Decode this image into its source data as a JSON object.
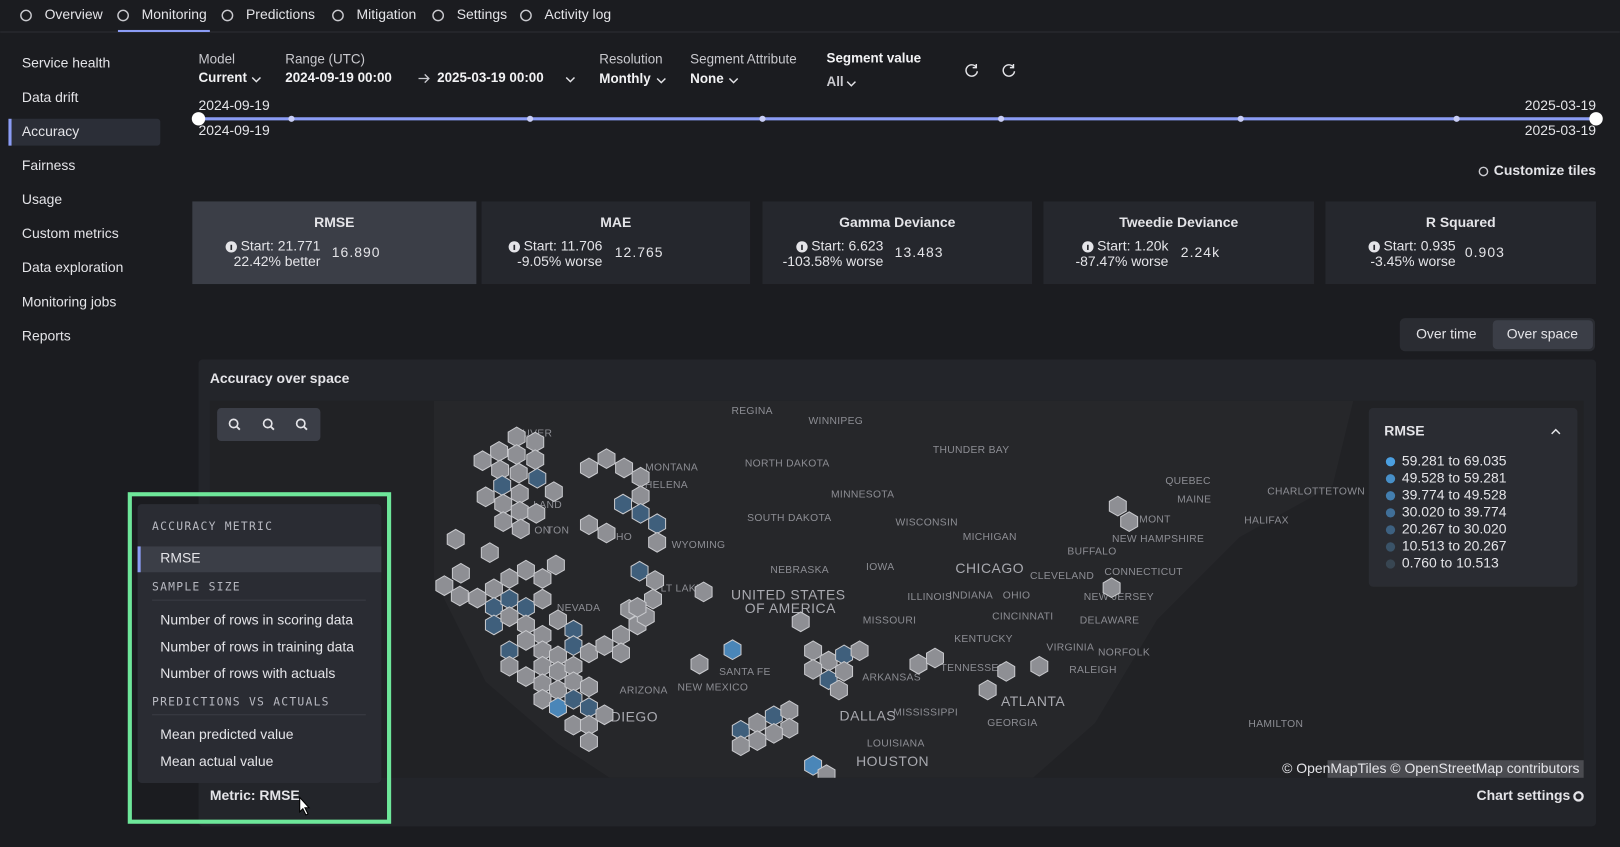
{
  "nav": [
    "Overview",
    "Monitoring",
    "Predictions",
    "Mitigation",
    "Settings",
    "Activity log"
  ],
  "sidebar": [
    "Service health",
    "Data drift",
    "Accuracy",
    "Fairness",
    "Usage",
    "Custom metrics",
    "Data exploration",
    "Monitoring jobs",
    "Reports"
  ],
  "filters": {
    "model": {
      "label": "Model",
      "value": "Current"
    },
    "range": {
      "label": "Range (UTC)",
      "start": "2024-09-19  00:00",
      "end": "2025-03-19  00:00"
    },
    "resolution": {
      "label": "Resolution",
      "value": "Monthly"
    },
    "segment_attribute": {
      "label": "Segment Attribute",
      "value": "None"
    },
    "segment_value": {
      "label": "Segment value",
      "value": "All"
    }
  },
  "timeline": {
    "start_top": "2024-09-19",
    "start_bottom": "2024-09-19",
    "end_top": "2025-03-19",
    "end_bottom": "2025-03-19"
  },
  "customize": "Customize tiles",
  "tiles": [
    {
      "name": "RMSE",
      "start": "Start: 21.771",
      "change": "22.42% better",
      "change_color": "#4cc47a",
      "value": "16.890"
    },
    {
      "name": "MAE",
      "start": "Start: 11.706",
      "change": "-9.05% worse",
      "change_color": "#e0605a",
      "value": "12.765"
    },
    {
      "name": "Gamma Deviance",
      "start": "Start: 6.623",
      "change": "-103.58% worse",
      "change_color": "#e0605a",
      "value": "13.483"
    },
    {
      "name": "Tweedie Deviance",
      "start": "Start: 1.20k",
      "change": "-87.47% worse",
      "change_color": "#e0605a",
      "value": "2.24k"
    },
    {
      "name": "R Squared",
      "start": "Start: 0.935",
      "change": "-3.45% worse",
      "change_color": "#e0605a",
      "value": "0.903"
    }
  ],
  "toggle": [
    "Over time",
    "Over space"
  ],
  "panel": {
    "title": "Accuracy over space",
    "legend": {
      "title": "RMSE",
      "items": [
        {
          "label": "59.281 to 69.035",
          "color": "#4b9fe0"
        },
        {
          "label": "49.528 to 59.281",
          "color": "#478fc8"
        },
        {
          "label": "39.774 to 49.528",
          "color": "#437fb0"
        },
        {
          "label": "30.020 to 39.774",
          "color": "#406f98"
        },
        {
          "label": "20.267 to 30.020",
          "color": "#3d6181"
        },
        {
          "label": "10.513 to 20.267",
          "color": "#3a5368"
        },
        {
          "label": "0.760 to 10.513",
          "color": "#384652"
        }
      ]
    },
    "map_labels": [
      "UVER",
      "REGINA",
      "WINNIPEG",
      "THUNDER BAY",
      "QUEBEC",
      "CHARLOTTETOWN",
      "MAINE",
      "HALIFAX",
      "MONTANA",
      "HELENA",
      "NORTH DAKOTA",
      "MINNESOTA",
      "SOUTH DAKOTA",
      "WISCONSIN",
      "MICHIGAN",
      "MONT",
      "NEW HAMPSHIRE",
      "WYOMING",
      "NEBRASKA",
      "IOWA",
      "CHICAGO",
      "BUFFALO",
      "CONNECTICUT",
      "NEVADA",
      "LT LAKE",
      "UNITED STATES",
      "OF AMERICA",
      "ILLINOIS",
      "INDIANA",
      "OHIO",
      "CLEVELAND",
      "NEW JERSEY",
      "CINCINNATI",
      "DELAWARE",
      "MISSOURI",
      "KENTUCKY",
      "VIRGINIA",
      "NORFOLK",
      "SANTA FE",
      "ARIZONA",
      "NEW MEXICO",
      "TENNESSEE",
      "RALEIGH",
      "ARKANSAS",
      "ATLANTA",
      "DALLAS",
      "MISSISSIPPI",
      "GEORGIA",
      "HAMILTON",
      "LOUISIANA",
      "HOUSTON",
      "DIEGO",
      "LAND",
      "TON",
      "HO",
      "ON"
    ],
    "attribution": "© OpenMapTiles © OpenStreetMap contributors",
    "metric_label": "Metric:",
    "metric_value": "RMSE",
    "chart_settings": "Chart settings"
  },
  "dropdown": {
    "sections": [
      {
        "heading": "ACCURACY METRIC",
        "options": [
          "RMSE"
        ]
      },
      {
        "heading": "SAMPLE SIZE",
        "options": [
          "Number of rows in scoring data",
          "Number of rows in training data",
          "Number of rows with actuals"
        ]
      },
      {
        "heading": "PREDICTIONS VS ACTUALS",
        "options": [
          "Mean predicted value",
          "Mean actual value"
        ]
      }
    ]
  }
}
